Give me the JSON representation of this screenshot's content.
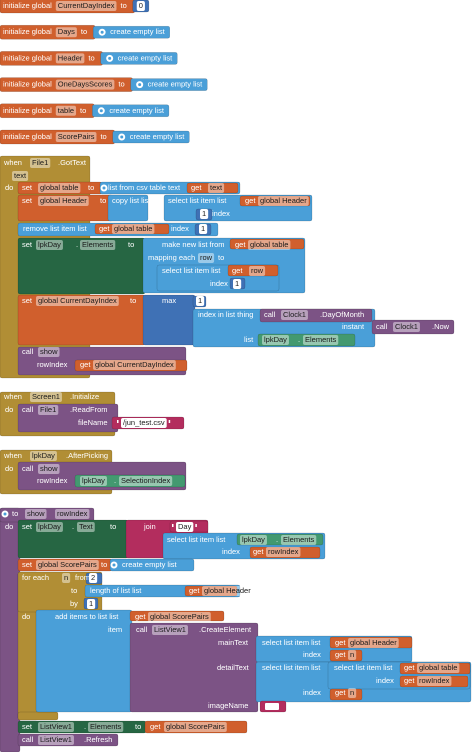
{
  "globals": [
    {
      "label": "initialize global",
      "name": "CurrentDayIndex",
      "to": "to",
      "value": 0
    },
    {
      "label": "initialize global",
      "name": "Days",
      "to": "to",
      "value": "create empty list"
    },
    {
      "label": "initialize global",
      "name": "Header",
      "to": "to",
      "value": "create empty list"
    },
    {
      "label": "initialize global",
      "name": "OneDaysScores",
      "to": "to",
      "value": "create empty list"
    },
    {
      "label": "initialize global",
      "name": "table",
      "to": "to",
      "value": "create empty list"
    },
    {
      "label": "initialize global",
      "name": "ScorePairs",
      "to": "to",
      "value": "create empty list"
    }
  ],
  "got_text": [
    "when",
    "File1",
    ".GotText",
    "text",
    "do",
    "set",
    "global table",
    "to",
    "list from csv table  text",
    "get",
    "text",
    "set",
    "global Header",
    "to",
    "copy list  list",
    "select list item  list",
    "get",
    "global Header",
    "index",
    1,
    "remove list item  list",
    "get",
    "global table",
    "index",
    1,
    "set",
    "lpkDay",
    ".",
    "Elements",
    "to",
    "make new list from",
    "get",
    "global table",
    "mapping each",
    "row",
    "to",
    "select list item  list",
    "get",
    "row",
    "index",
    1,
    "set",
    "global CurrentDayIndex",
    "to",
    "max",
    1,
    "index in list  thing",
    "call",
    "Clock1",
    ".DayOfMonth",
    "instant",
    "call",
    "Clock1",
    ".Now",
    "list",
    "lpkDay",
    ".",
    "Elements",
    "call",
    "show",
    "rowIndex",
    "get",
    "global CurrentDayIndex"
  ],
  "screen_init": [
    "when",
    "Screen1",
    ".Initialize",
    "do",
    "call",
    "File1",
    ".ReadFrom",
    "fileName",
    "/jun_test.csv"
  ],
  "after_picking": [
    "when",
    "lpkDay",
    ".AfterPicking",
    "do",
    "call",
    "show",
    "rowIndex",
    "lpkDay",
    ".",
    "SelectionIndex"
  ],
  "show_proc": [
    "to",
    "show",
    "rowIndex",
    "do",
    "set",
    "lpkDay",
    ".",
    "Text",
    "to",
    "join",
    "Day ",
    "select list item  list",
    "lpkDay",
    ".",
    "Elements",
    "index",
    "get",
    "rowIndex",
    "set",
    "global ScorePairs",
    "to",
    "create empty list",
    "for each",
    "n",
    "from",
    2,
    "to",
    "length of list  list",
    "get",
    "global Header",
    "by",
    1,
    "do",
    "add items to list  list",
    "get",
    "global ScorePairs",
    "item",
    "call",
    "ListView1",
    ".CreateElement",
    "mainText",
    "select list item  list",
    "get",
    "global Header",
    "index",
    "get",
    "n",
    "detailText",
    "select list item  list",
    "select list item  list",
    "get",
    "global table",
    "index",
    "get",
    "rowIndex",
    "index",
    "get",
    "n",
    "imageName",
    "set",
    "ListView1",
    ".",
    "Elements",
    "to",
    "get",
    "global ScorePairs",
    "call",
    "ListView1",
    ".Refresh"
  ]
}
